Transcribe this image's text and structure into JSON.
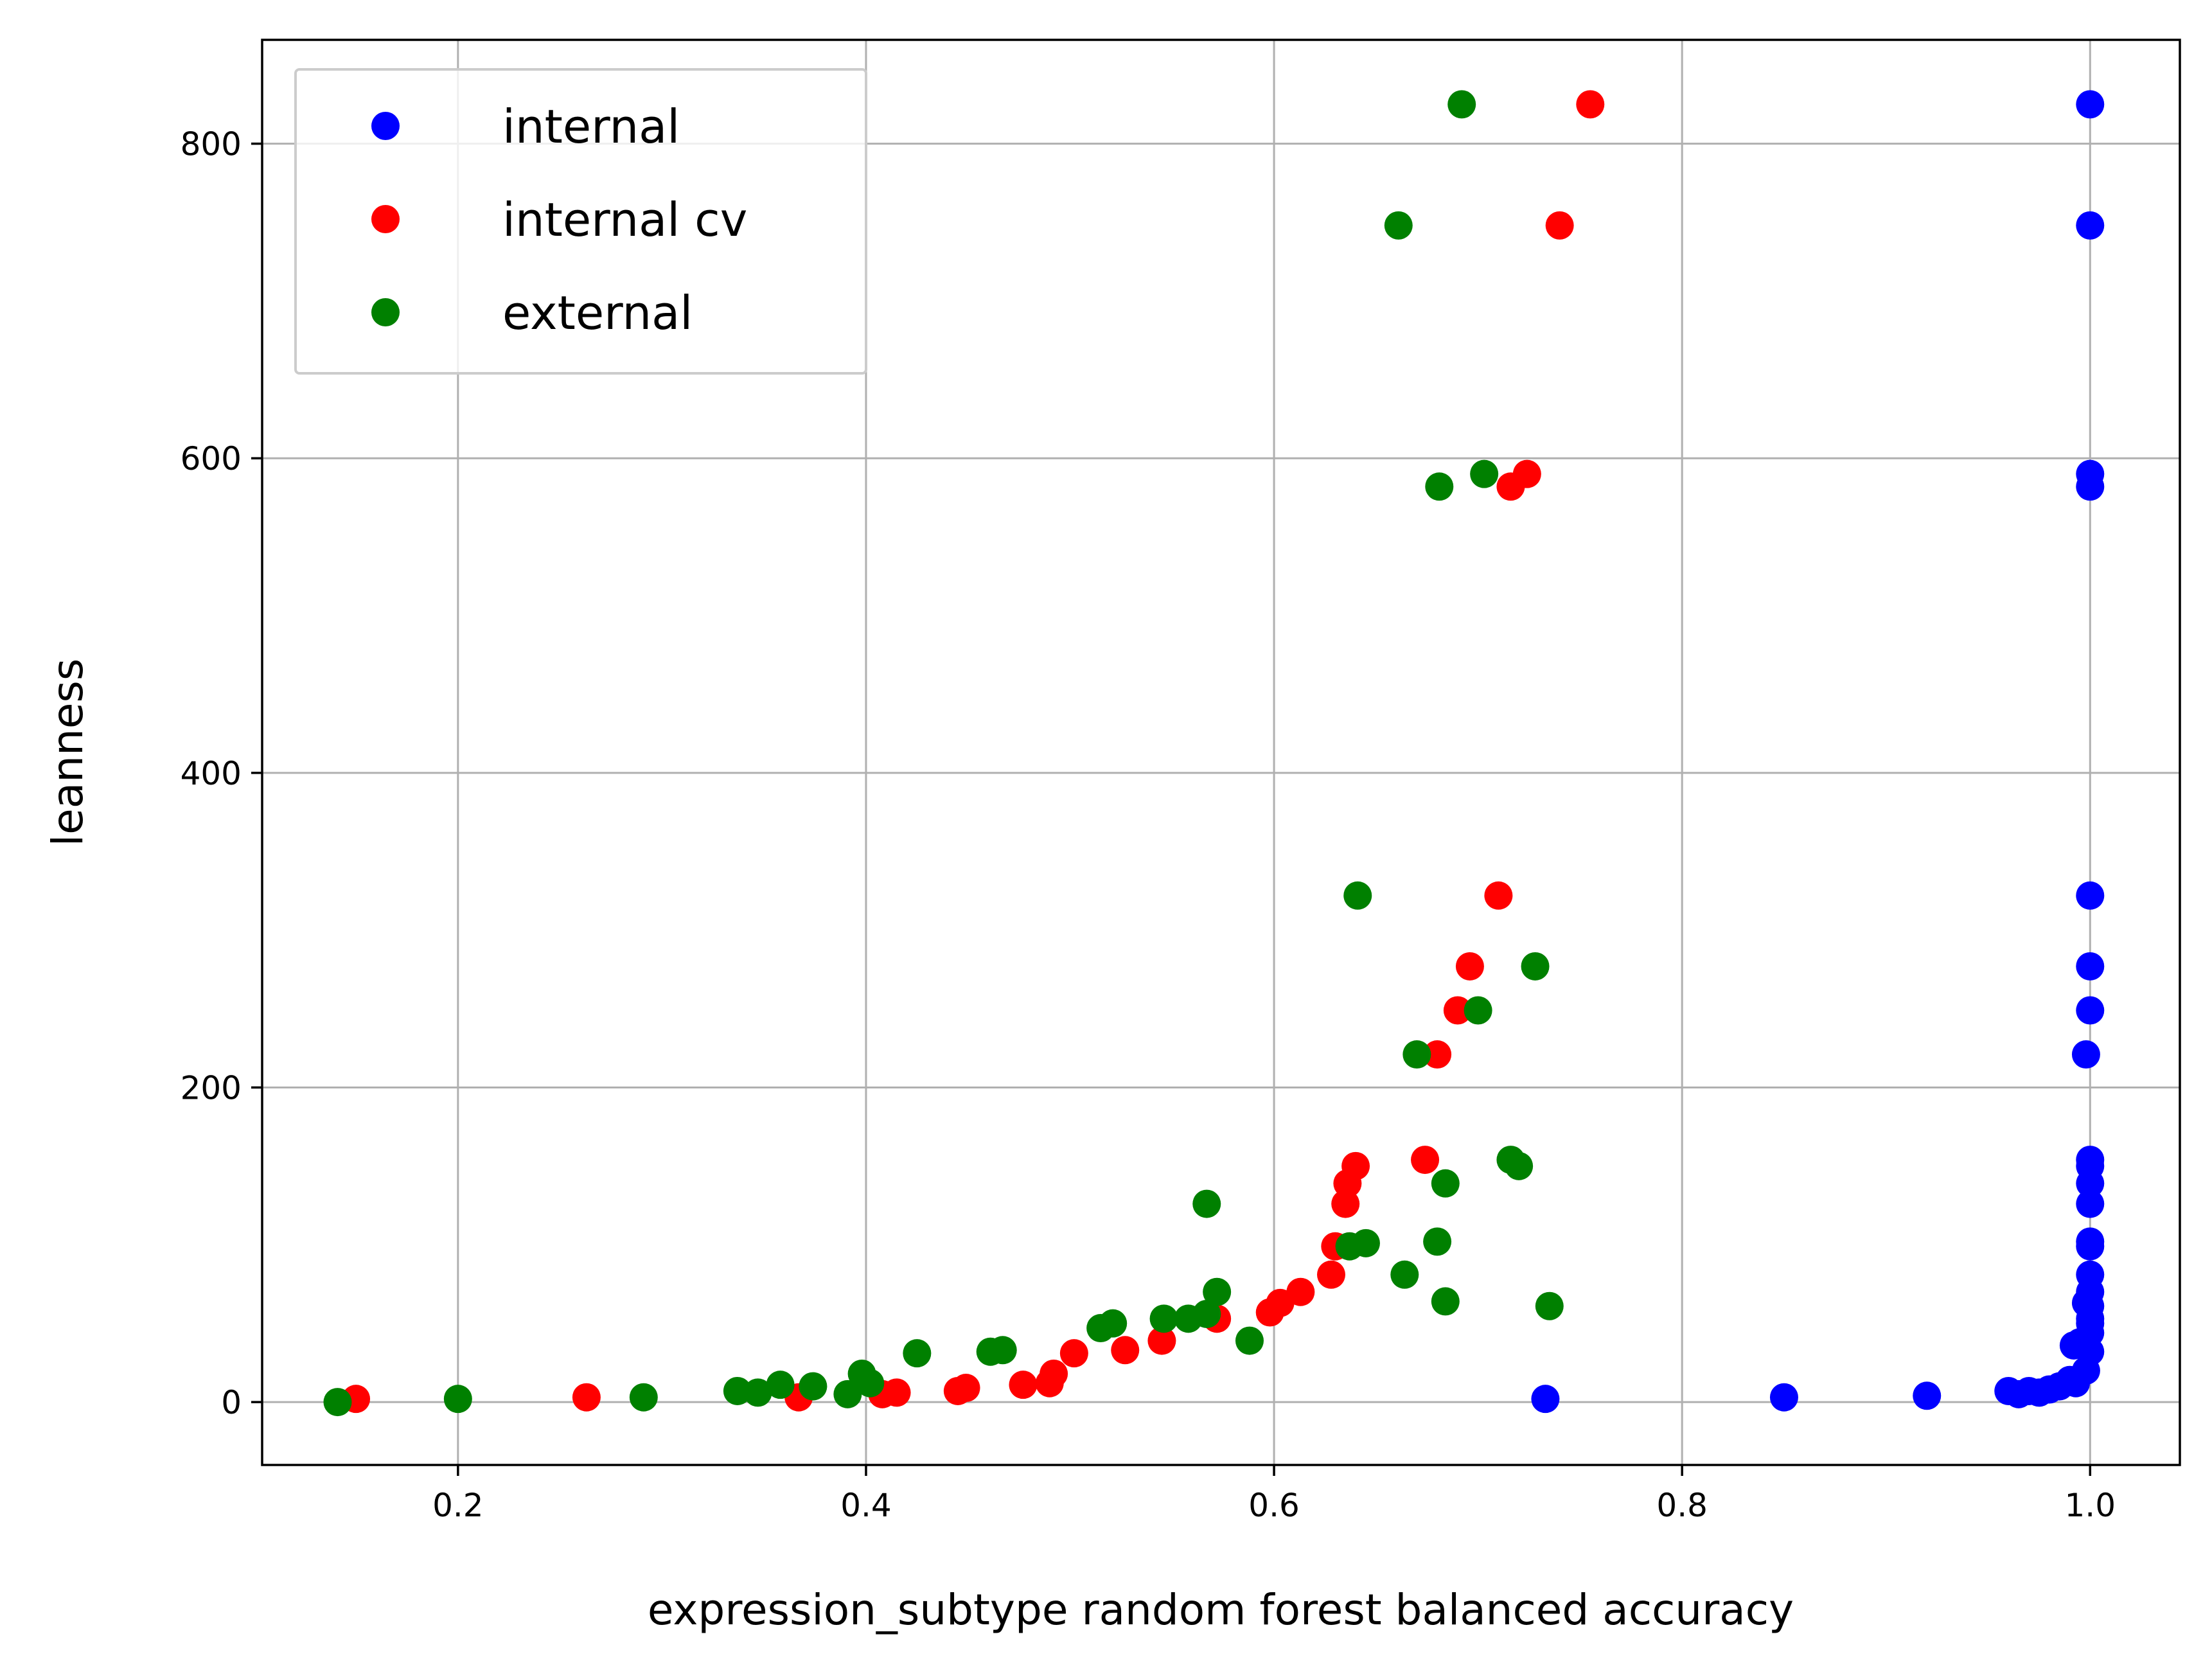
{
  "chart_data": {
    "type": "scatter",
    "title": "",
    "xlabel": "expression_subtype random forest balanced accuracy",
    "ylabel": "leanness",
    "xlim": [
      0.104,
      1.044
    ],
    "ylim": [
      -40,
      866
    ],
    "xticks": [
      "0.2",
      "0.4",
      "0.6",
      "0.8",
      "1.0"
    ],
    "xtick_values": [
      0.2,
      0.4,
      0.6,
      0.8,
      1.0
    ],
    "yticks": [
      "0",
      "200",
      "400",
      "600",
      "800"
    ],
    "ytick_values": [
      0,
      200,
      400,
      600,
      800
    ],
    "grid": true,
    "legend": "upper left",
    "series": [
      {
        "name": "internal",
        "color": "#0000ff",
        "points": [
          [
            1.0,
            825
          ],
          [
            1.0,
            748
          ],
          [
            1.0,
            590
          ],
          [
            1.0,
            582
          ],
          [
            1.0,
            322
          ],
          [
            1.0,
            277
          ],
          [
            1.0,
            249
          ],
          [
            0.998,
            221
          ],
          [
            1.0,
            154
          ],
          [
            1.0,
            150
          ],
          [
            1.0,
            139
          ],
          [
            1.0,
            126
          ],
          [
            1.0,
            102
          ],
          [
            1.0,
            99
          ],
          [
            1.0,
            81
          ],
          [
            1.0,
            70
          ],
          [
            0.998,
            63
          ],
          [
            1.0,
            61
          ],
          [
            1.0,
            53
          ],
          [
            1.0,
            50
          ],
          [
            1.0,
            44
          ],
          [
            1.0,
            32
          ],
          [
            0.995,
            38
          ],
          [
            0.992,
            36
          ],
          [
            0.998,
            20
          ],
          [
            0.99,
            14
          ],
          [
            0.985,
            10
          ],
          [
            0.98,
            8
          ],
          [
            0.975,
            6
          ],
          [
            0.97,
            7
          ],
          [
            0.965,
            5
          ],
          [
            0.96,
            7
          ],
          [
            0.993,
            12
          ],
          [
            0.92,
            4
          ],
          [
            0.85,
            3
          ],
          [
            0.733,
            2
          ]
        ]
      },
      {
        "name": "internal cv",
        "color": "#ff0000",
        "points": [
          [
            0.755,
            825
          ],
          [
            0.74,
            748
          ],
          [
            0.724,
            590
          ],
          [
            0.716,
            582
          ],
          [
            0.71,
            322
          ],
          [
            0.696,
            277
          ],
          [
            0.69,
            249
          ],
          [
            0.68,
            221
          ],
          [
            0.674,
            154
          ],
          [
            0.64,
            150
          ],
          [
            0.636,
            139
          ],
          [
            0.635,
            126
          ],
          [
            0.63,
            99
          ],
          [
            0.628,
            81
          ],
          [
            0.613,
            70
          ],
          [
            0.603,
            63
          ],
          [
            0.598,
            57
          ],
          [
            0.572,
            53
          ],
          [
            0.545,
            39
          ],
          [
            0.527,
            33
          ],
          [
            0.502,
            31
          ],
          [
            0.492,
            18
          ],
          [
            0.49,
            12
          ],
          [
            0.477,
            11
          ],
          [
            0.449,
            9
          ],
          [
            0.445,
            7
          ],
          [
            0.415,
            6
          ],
          [
            0.408,
            5
          ],
          [
            0.367,
            3
          ],
          [
            0.263,
            3
          ],
          [
            0.15,
            2
          ]
        ]
      },
      {
        "name": "external",
        "color": "#008000",
        "points": [
          [
            0.692,
            825
          ],
          [
            0.661,
            748
          ],
          [
            0.703,
            590
          ],
          [
            0.681,
            582
          ],
          [
            0.641,
            322
          ],
          [
            0.728,
            277
          ],
          [
            0.7,
            249
          ],
          [
            0.67,
            221
          ],
          [
            0.716,
            154
          ],
          [
            0.72,
            150
          ],
          [
            0.684,
            139
          ],
          [
            0.567,
            126
          ],
          [
            0.645,
            101
          ],
          [
            0.68,
            102
          ],
          [
            0.637,
            99
          ],
          [
            0.664,
            81
          ],
          [
            0.735,
            61
          ],
          [
            0.684,
            64
          ],
          [
            0.572,
            70
          ],
          [
            0.588,
            39
          ],
          [
            0.567,
            56
          ],
          [
            0.558,
            53
          ],
          [
            0.546,
            53
          ],
          [
            0.521,
            50
          ],
          [
            0.515,
            47
          ],
          [
            0.467,
            33
          ],
          [
            0.461,
            32
          ],
          [
            0.425,
            31
          ],
          [
            0.398,
            18
          ],
          [
            0.402,
            12
          ],
          [
            0.391,
            5
          ],
          [
            0.374,
            10
          ],
          [
            0.358,
            11
          ],
          [
            0.347,
            6
          ],
          [
            0.337,
            7
          ],
          [
            0.291,
            3
          ],
          [
            0.2,
            2
          ],
          [
            0.141,
            0
          ]
        ]
      }
    ]
  }
}
